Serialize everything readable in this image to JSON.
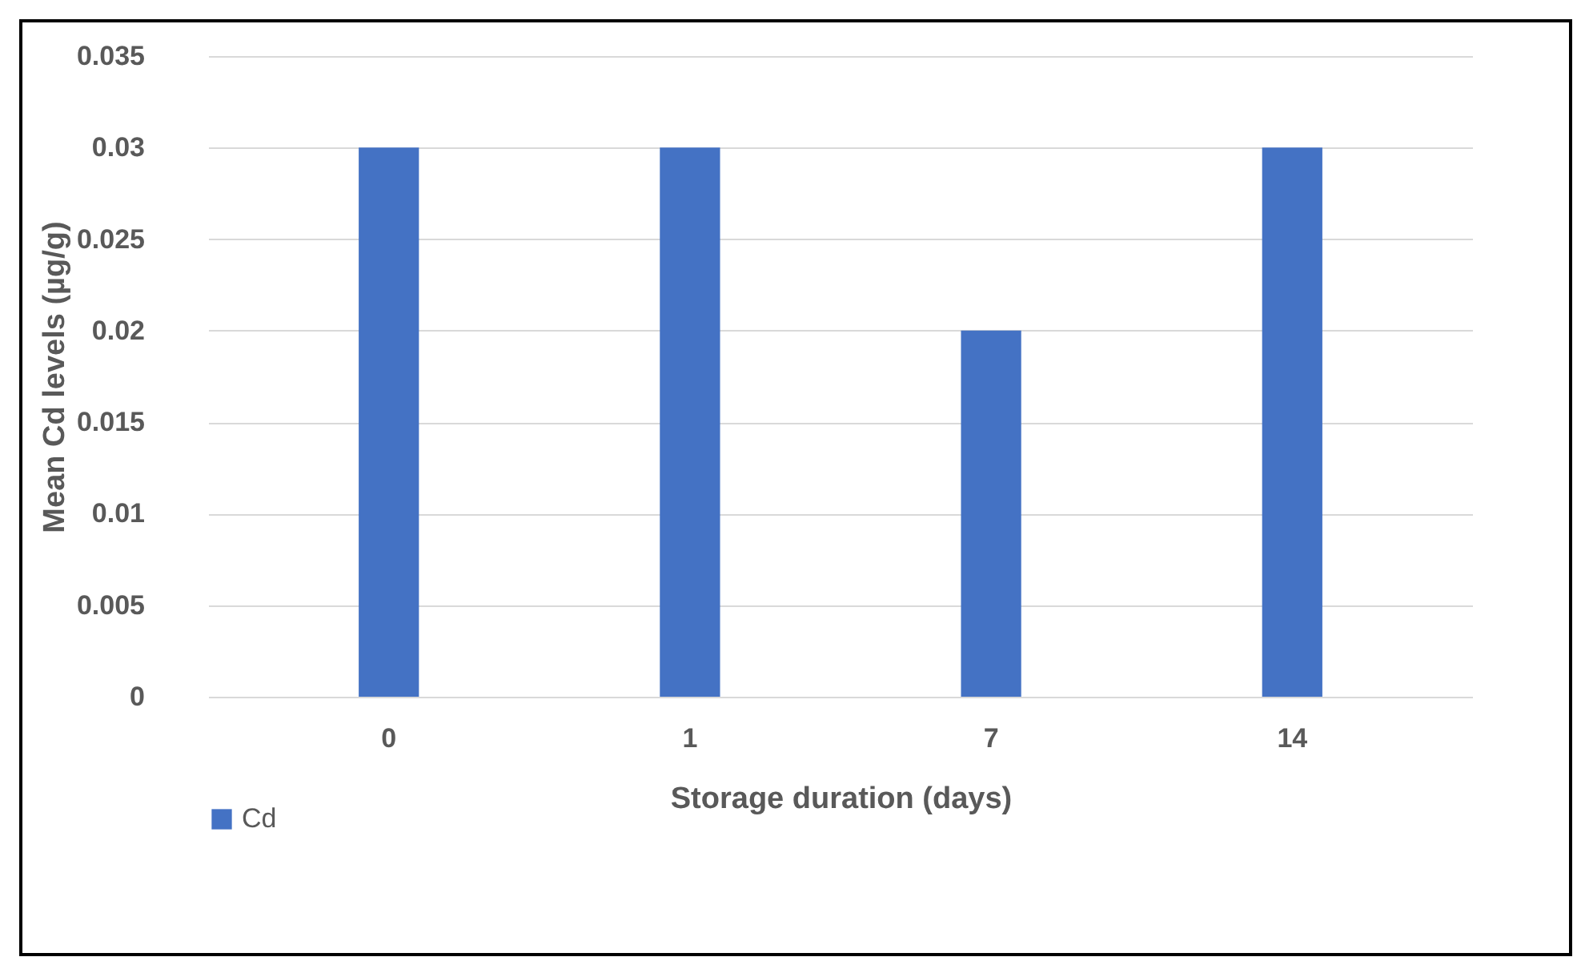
{
  "chart_data": {
    "type": "bar",
    "xlabel": "Storage duration  (days)",
    "ylabel": "Mean Cd levels (µg/g)",
    "categories": [
      "0",
      "1",
      "7",
      "14"
    ],
    "series": [
      {
        "name": "Cd",
        "color": "#4472c4",
        "values": [
          0.03,
          0.03,
          0.02,
          0.03
        ]
      }
    ],
    "ylim": [
      0,
      0.035
    ],
    "yticks": [
      0,
      0.005,
      0.01,
      0.015,
      0.02,
      0.025,
      0.03,
      0.035
    ],
    "grid": "y",
    "legend": "bottom"
  }
}
